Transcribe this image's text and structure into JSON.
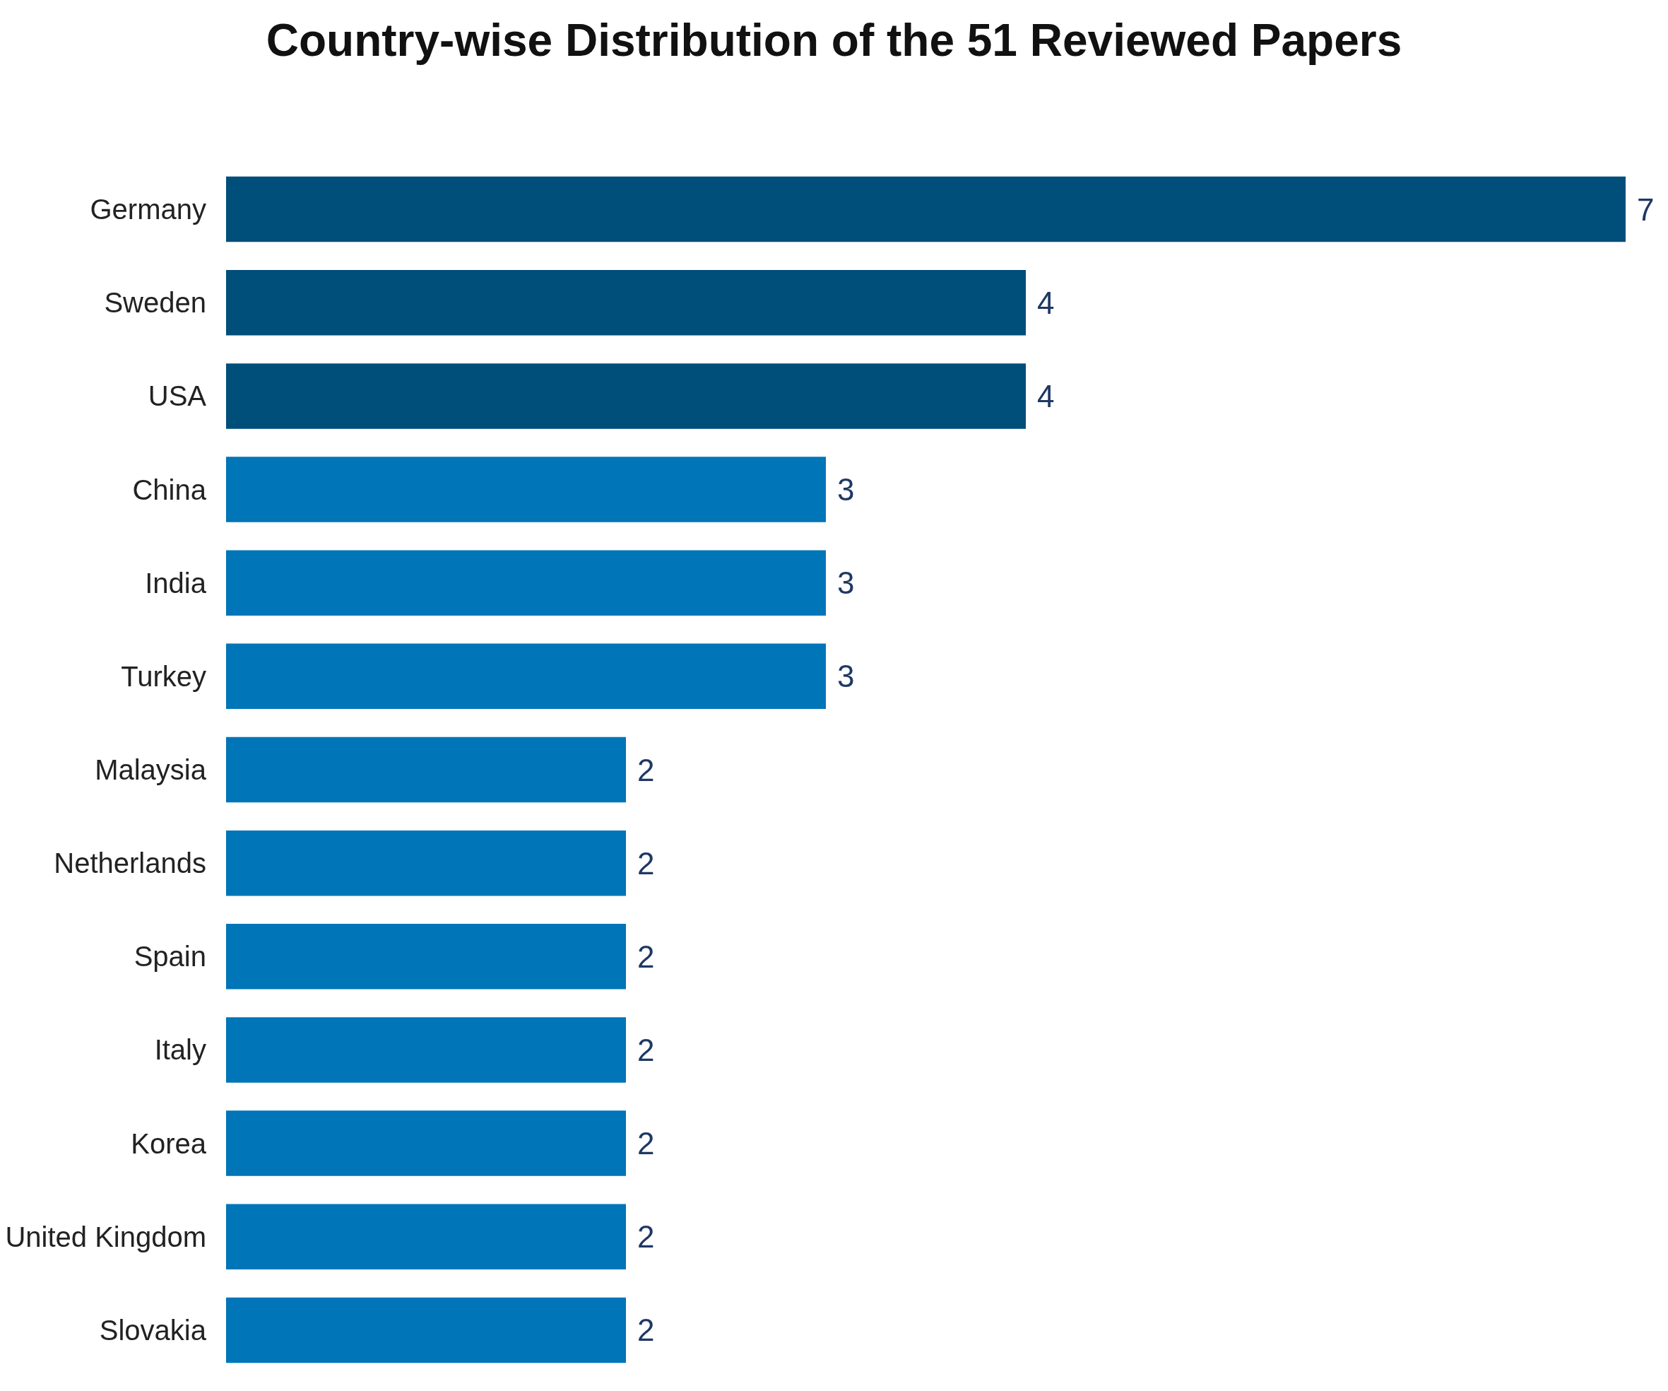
{
  "chart_data": {
    "type": "bar",
    "orientation": "horizontal",
    "title": "Country-wise Distribution of the 51 Reviewed Papers",
    "categories": [
      "Germany",
      "Sweden",
      "USA",
      "China",
      "India",
      "Turkey",
      "Malaysia",
      "Netherlands",
      "Spain",
      "Italy",
      "Korea",
      "United Kingdom",
      "Slovakia"
    ],
    "values": [
      7,
      4,
      4,
      3,
      3,
      3,
      2,
      2,
      2,
      2,
      2,
      2,
      2
    ],
    "colors": [
      "#004e7a",
      "#004e7a",
      "#004e7a",
      "#0075b8",
      "#0075b8",
      "#0075b8",
      "#0075b8",
      "#0075b8",
      "#0075b8",
      "#0075b8",
      "#0075b8",
      "#0075b8",
      "#0075b8"
    ],
    "data_labels": true,
    "tick_labels": "y"
  }
}
